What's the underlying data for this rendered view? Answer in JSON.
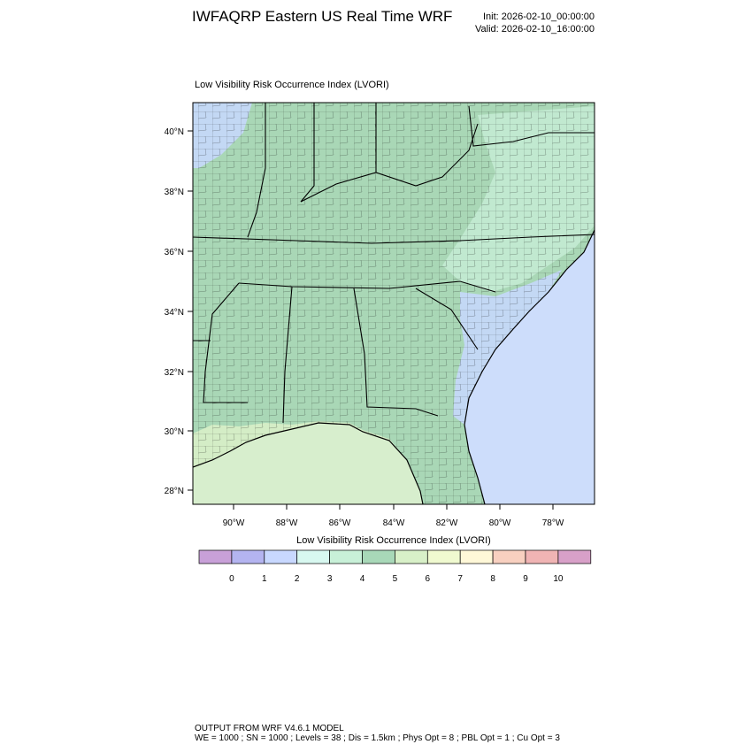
{
  "header": {
    "title": "IWFAQRP Eastern US Real Time WRF",
    "init": "Init: 2026-02-10_00:00:00",
    "valid": "Valid: 2026-02-10_16:00:00"
  },
  "panel": {
    "title": "Low Visibility Risk Occurrence Index   (LVORI)"
  },
  "axes": {
    "lat_labels": [
      "40°N",
      "38°N",
      "36°N",
      "34°N",
      "32°N",
      "30°N",
      "28°N"
    ],
    "lon_labels": [
      "90°W",
      "88°W",
      "86°W",
      "84°W",
      "82°W",
      "80°W",
      "78°W"
    ]
  },
  "colorbar": {
    "title": "Low Visibility Risk Occurrence Index  (LVORI)",
    "labels": [
      "0",
      "1",
      "2",
      "3",
      "4",
      "5",
      "6",
      "7",
      "8",
      "9",
      "10"
    ],
    "colors": [
      "#c8a0d8",
      "#b4b4f0",
      "#c8d8ff",
      "#d8f8f0",
      "#c8f0d8",
      "#a8d8b8",
      "#d8f0c8",
      "#f0fad0",
      "#fff8d8",
      "#f8d0c0",
      "#f0b4b4",
      "#d8a0c8"
    ]
  },
  "colors": {
    "ocean": "#cdddfb",
    "land_green": "#a9d7b6",
    "land_light": "#c9efd8",
    "coastal_blue": "#c8d8ff",
    "coast_green": "#d8f0c8",
    "boundary": "#000000"
  },
  "footer": {
    "line1": "OUTPUT FROM WRF V4.6.1 MODEL",
    "line2": "WE = 1000 ; SN = 1000 ; Levels = 38 ; Dis = 1.5km ; Phys Opt = 8 ; PBL Opt = 1 ; Cu Opt = 3"
  }
}
